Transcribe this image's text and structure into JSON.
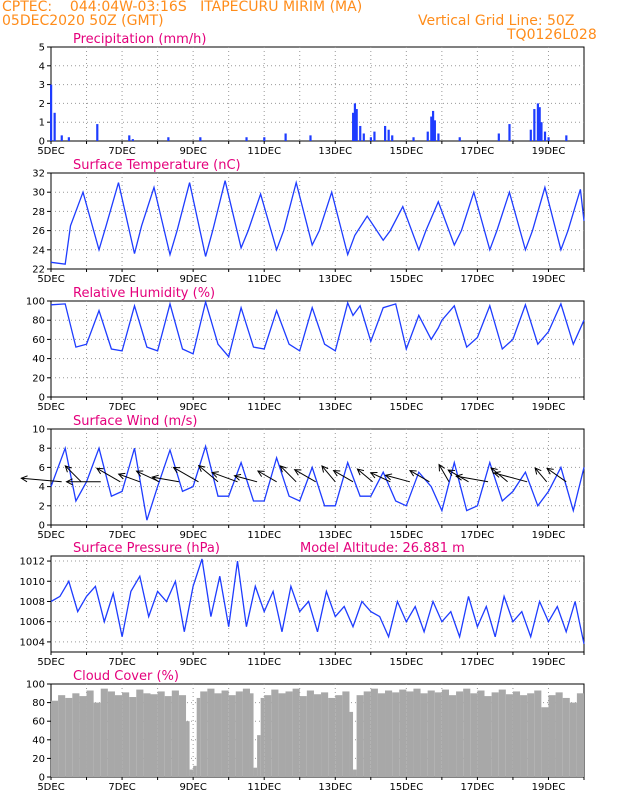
{
  "header": {
    "line1": "CPTEC:    044:04W-03:16S   ITAPECURU MIRIM (MA)",
    "line2": "05DEC2020 50Z (GMT)",
    "grid_note": "Vertical Grid Line: 50Z",
    "code": "TQ0126L028"
  },
  "colors": {
    "header": "#ff8c1a",
    "title": "#e4007c",
    "line": "#1e3cff",
    "bar": "#1e3cff",
    "cloud": "#a8a8a8",
    "arrow": "#000000",
    "grid": "#999999"
  },
  "x_ticks": [
    "5DEC",
    "7DEC",
    "9DEC",
    "11DEC",
    "13DEC",
    "15DEC",
    "17DEC",
    "19DEC"
  ],
  "chart_data": [
    {
      "type": "bar",
      "title": "Precipitation (mm/h)",
      "ylim": [
        0,
        5
      ],
      "yticks": [
        0,
        1,
        2,
        3,
        4,
        5
      ],
      "x": [
        5.0,
        5.1,
        5.3,
        5.5,
        6.3,
        7.2,
        7.3,
        8.3,
        9.2,
        10.5,
        11.0,
        11.6,
        12.3,
        13.5,
        13.55,
        13.6,
        13.7,
        13.8,
        14.0,
        14.1,
        14.4,
        14.5,
        14.6,
        15.2,
        15.6,
        15.7,
        15.75,
        15.8,
        15.9,
        16.5,
        17.6,
        17.9,
        18.5,
        18.6,
        18.7,
        18.75,
        18.8,
        18.9,
        19.0,
        19.5
      ],
      "values": [
        3.0,
        1.5,
        0.3,
        0.2,
        0.9,
        0.3,
        0.1,
        0.2,
        0.2,
        0.2,
        0.2,
        0.4,
        0.3,
        1.5,
        2.0,
        1.7,
        0.8,
        0.4,
        0.2,
        0.5,
        0.8,
        0.6,
        0.3,
        0.2,
        0.5,
        1.3,
        1.6,
        1.1,
        0.4,
        0.2,
        0.4,
        0.9,
        0.6,
        1.7,
        2.0,
        1.8,
        1.0,
        0.5,
        0.2,
        0.3
      ]
    },
    {
      "type": "line",
      "title": "Surface Temperature (nC)",
      "ylim": [
        22,
        32
      ],
      "yticks": [
        22,
        24,
        26,
        28,
        30,
        32
      ],
      "x": [
        5.0,
        5.4,
        5.55,
        5.9,
        6.35,
        6.55,
        6.9,
        7.35,
        7.55,
        7.9,
        8.35,
        8.55,
        8.9,
        9.35,
        9.55,
        9.9,
        10.35,
        10.55,
        10.9,
        11.35,
        11.55,
        11.9,
        12.35,
        12.55,
        12.9,
        13.35,
        13.55,
        13.9,
        14.35,
        14.55,
        14.9,
        15.35,
        15.55,
        15.9,
        16.35,
        16.55,
        16.9,
        17.35,
        17.55,
        17.9,
        18.35,
        18.55,
        18.9,
        19.35,
        19.55,
        19.9,
        20.0
      ],
      "values": [
        22.7,
        22.5,
        26.5,
        30.0,
        24.0,
        26.5,
        31.0,
        23.6,
        26.5,
        30.5,
        23.5,
        26.0,
        31.0,
        23.3,
        26.0,
        31.2,
        24.2,
        26.0,
        29.8,
        24.0,
        26.0,
        31.0,
        24.5,
        26.0,
        30.0,
        23.5,
        25.5,
        27.5,
        25.0,
        26.0,
        28.5,
        24.0,
        26.0,
        29.0,
        24.5,
        26.0,
        30.0,
        24.0,
        26.0,
        30.0,
        24.0,
        26.0,
        30.5,
        24.0,
        26.0,
        30.3,
        27.0
      ]
    },
    {
      "type": "line",
      "title": "Relative Humidity (%)",
      "ylim": [
        0,
        100
      ],
      "yticks": [
        0,
        20,
        40,
        60,
        80,
        100
      ],
      "x": [
        5.0,
        5.4,
        5.7,
        6.0,
        6.35,
        6.7,
        7.0,
        7.35,
        7.7,
        8.0,
        8.35,
        8.7,
        9.0,
        9.35,
        9.7,
        10.0,
        10.35,
        10.7,
        11.0,
        11.35,
        11.7,
        12.0,
        12.35,
        12.7,
        13.0,
        13.35,
        13.5,
        13.7,
        14.0,
        14.35,
        14.7,
        15.0,
        15.35,
        15.7,
        15.9,
        16.0,
        16.35,
        16.7,
        17.0,
        17.35,
        17.7,
        18.0,
        18.35,
        18.7,
        19.0,
        19.35,
        19.7,
        20.0
      ],
      "values": [
        96,
        97,
        52,
        55,
        90,
        50,
        48,
        95,
        52,
        48,
        97,
        50,
        45,
        99,
        55,
        42,
        93,
        52,
        50,
        90,
        55,
        48,
        93,
        55,
        48,
        98,
        85,
        95,
        58,
        93,
        97,
        50,
        85,
        60,
        72,
        80,
        95,
        52,
        62,
        95,
        50,
        60,
        96,
        55,
        68,
        97,
        55,
        80
      ]
    },
    {
      "type": "line",
      "title": "Surface Wind (m/s)",
      "ylim": [
        0,
        10
      ],
      "yticks": [
        0,
        2,
        4,
        6,
        8,
        10
      ],
      "x": [
        5.0,
        5.4,
        5.7,
        6.0,
        6.35,
        6.7,
        7.0,
        7.35,
        7.7,
        8.0,
        8.35,
        8.7,
        9.0,
        9.35,
        9.7,
        10.0,
        10.35,
        10.7,
        11.0,
        11.35,
        11.7,
        12.0,
        12.35,
        12.7,
        13.0,
        13.35,
        13.7,
        14.0,
        14.35,
        14.7,
        15.0,
        15.35,
        15.7,
        16.0,
        16.35,
        16.7,
        17.0,
        17.35,
        17.7,
        18.0,
        18.35,
        18.7,
        19.0,
        19.35,
        19.7,
        20.0
      ],
      "values": [
        4.0,
        8.0,
        2.5,
        4.5,
        8.0,
        3.0,
        3.5,
        8.0,
        0.5,
        4.0,
        7.8,
        3.5,
        4.0,
        8.2,
        3.0,
        3.0,
        6.5,
        2.5,
        2.5,
        7.0,
        3.0,
        2.5,
        6.0,
        2.0,
        2.0,
        6.5,
        3.0,
        3.0,
        5.5,
        2.5,
        2.0,
        5.5,
        4.0,
        1.5,
        6.5,
        1.5,
        2.0,
        6.5,
        2.5,
        3.5,
        5.5,
        2.0,
        3.5,
        6.0,
        1.5,
        6.0
      ],
      "wind_arrows": [
        {
          "x": 5.3,
          "dir_deg": 275,
          "speed": 4.5
        },
        {
          "x": 5.85,
          "dir_deg": 315,
          "speed": 2.5
        },
        {
          "x": 6.4,
          "dir_deg": 270,
          "speed": 3.8
        },
        {
          "x": 6.95,
          "dir_deg": 300,
          "speed": 3.0
        },
        {
          "x": 7.5,
          "dir_deg": 290,
          "speed": 2.5
        },
        {
          "x": 8.05,
          "dir_deg": 295,
          "speed": 2.8
        },
        {
          "x": 8.6,
          "dir_deg": 280,
          "speed": 3.0
        },
        {
          "x": 9.15,
          "dir_deg": 300,
          "speed": 3.2
        },
        {
          "x": 9.7,
          "dir_deg": 310,
          "speed": 2.8
        },
        {
          "x": 10.25,
          "dir_deg": 290,
          "speed": 3.0
        },
        {
          "x": 10.8,
          "dir_deg": 285,
          "speed": 2.6
        },
        {
          "x": 11.35,
          "dir_deg": 300,
          "speed": 2.4
        },
        {
          "x": 11.9,
          "dir_deg": 315,
          "speed": 2.5
        },
        {
          "x": 12.45,
          "dir_deg": 300,
          "speed": 2.7
        },
        {
          "x": 13.0,
          "dir_deg": 320,
          "speed": 2.3
        },
        {
          "x": 13.5,
          "dir_deg": 300,
          "speed": 2.5
        },
        {
          "x": 14.05,
          "dir_deg": 310,
          "speed": 2.2
        },
        {
          "x": 14.55,
          "dir_deg": 295,
          "speed": 2.4
        },
        {
          "x": 15.1,
          "dir_deg": 285,
          "speed": 2.8
        },
        {
          "x": 15.65,
          "dir_deg": 300,
          "speed": 2.5
        },
        {
          "x": 16.2,
          "dir_deg": 330,
          "speed": 2.2
        },
        {
          "x": 16.75,
          "dir_deg": 300,
          "speed": 2.6
        },
        {
          "x": 17.3,
          "dir_deg": 280,
          "speed": 3.6
        },
        {
          "x": 17.85,
          "dir_deg": 310,
          "speed": 2.4
        },
        {
          "x": 18.4,
          "dir_deg": 285,
          "speed": 3.8
        },
        {
          "x": 18.95,
          "dir_deg": 320,
          "speed": 2.0
        },
        {
          "x": 19.5,
          "dir_deg": 305,
          "speed": 2.6
        }
      ]
    },
    {
      "type": "line",
      "title": "Surface Pressure (hPa)",
      "subtitle": "Model Altitude: 26.881  m",
      "ylim": [
        1003,
        1012.5
      ],
      "yticks": [
        1004,
        1006,
        1008,
        1010,
        1012
      ],
      "x": [
        5.0,
        5.25,
        5.5,
        5.75,
        6.0,
        6.25,
        6.5,
        6.75,
        7.0,
        7.25,
        7.5,
        7.75,
        8.0,
        8.25,
        8.5,
        8.75,
        9.0,
        9.25,
        9.5,
        9.75,
        10.0,
        10.25,
        10.5,
        10.75,
        11.0,
        11.25,
        11.5,
        11.75,
        12.0,
        12.25,
        12.5,
        12.75,
        13.0,
        13.25,
        13.5,
        13.75,
        14.0,
        14.25,
        14.5,
        14.75,
        15.0,
        15.25,
        15.5,
        15.75,
        16.0,
        16.25,
        16.5,
        16.75,
        17.0,
        17.25,
        17.5,
        17.75,
        18.0,
        18.25,
        18.5,
        18.75,
        19.0,
        19.25,
        19.5,
        19.75,
        20.0
      ],
      "values": [
        1008.0,
        1008.5,
        1010.0,
        1007.0,
        1008.5,
        1009.5,
        1006.0,
        1008.8,
        1004.5,
        1009.0,
        1010.5,
        1006.5,
        1009.0,
        1008.0,
        1010.0,
        1005.0,
        1009.5,
        1012.2,
        1006.5,
        1010.5,
        1005.5,
        1012.0,
        1005.5,
        1009.5,
        1007.0,
        1009.0,
        1005.0,
        1009.5,
        1007.0,
        1008.0,
        1005.0,
        1009.0,
        1006.5,
        1007.5,
        1005.5,
        1008.0,
        1007.0,
        1006.5,
        1004.5,
        1008.0,
        1006.0,
        1007.5,
        1005.0,
        1008.0,
        1006.0,
        1007.0,
        1004.5,
        1008.5,
        1005.5,
        1007.5,
        1004.5,
        1008.5,
        1006.0,
        1007.0,
        1004.5,
        1008.0,
        1006.0,
        1007.5,
        1005.0,
        1008.0,
        1003.8
      ]
    },
    {
      "type": "area",
      "title": "Cloud Cover (%)",
      "ylim": [
        0,
        100
      ],
      "yticks": [
        0,
        20,
        40,
        60,
        80,
        100
      ],
      "x": [
        5.0,
        5.2,
        5.4,
        5.6,
        5.8,
        6.0,
        6.2,
        6.4,
        6.6,
        6.8,
        7.0,
        7.2,
        7.4,
        7.6,
        7.8,
        8.0,
        8.2,
        8.4,
        8.6,
        8.8,
        8.9,
        9.0,
        9.1,
        9.2,
        9.4,
        9.6,
        9.8,
        10.0,
        10.2,
        10.4,
        10.6,
        10.7,
        10.8,
        10.9,
        11.0,
        11.2,
        11.4,
        11.6,
        11.8,
        12.0,
        12.2,
        12.4,
        12.6,
        12.8,
        13.0,
        13.2,
        13.4,
        13.5,
        13.6,
        13.8,
        14.0,
        14.2,
        14.4,
        14.6,
        14.8,
        15.0,
        15.2,
        15.4,
        15.6,
        15.8,
        16.0,
        16.2,
        16.4,
        16.6,
        16.8,
        17.0,
        17.2,
        17.4,
        17.6,
        17.8,
        18.0,
        18.2,
        18.4,
        18.6,
        18.8,
        19.0,
        19.2,
        19.4,
        19.6,
        19.8,
        20.0
      ],
      "values": [
        82,
        88,
        85,
        90,
        87,
        93,
        80,
        95,
        92,
        88,
        91,
        86,
        94,
        90,
        89,
        92,
        87,
        93,
        88,
        60,
        8,
        12,
        85,
        92,
        95,
        90,
        93,
        88,
        92,
        95,
        90,
        10,
        45,
        85,
        88,
        94,
        90,
        92,
        95,
        87,
        93,
        89,
        91,
        85,
        88,
        92,
        70,
        8,
        88,
        92,
        95,
        90,
        93,
        91,
        94,
        92,
        95,
        90,
        93,
        91,
        94,
        88,
        92,
        95,
        90,
        93,
        87,
        91,
        94,
        89,
        92,
        88,
        90,
        93,
        75,
        88,
        91,
        85,
        80,
        90,
        85
      ]
    }
  ]
}
